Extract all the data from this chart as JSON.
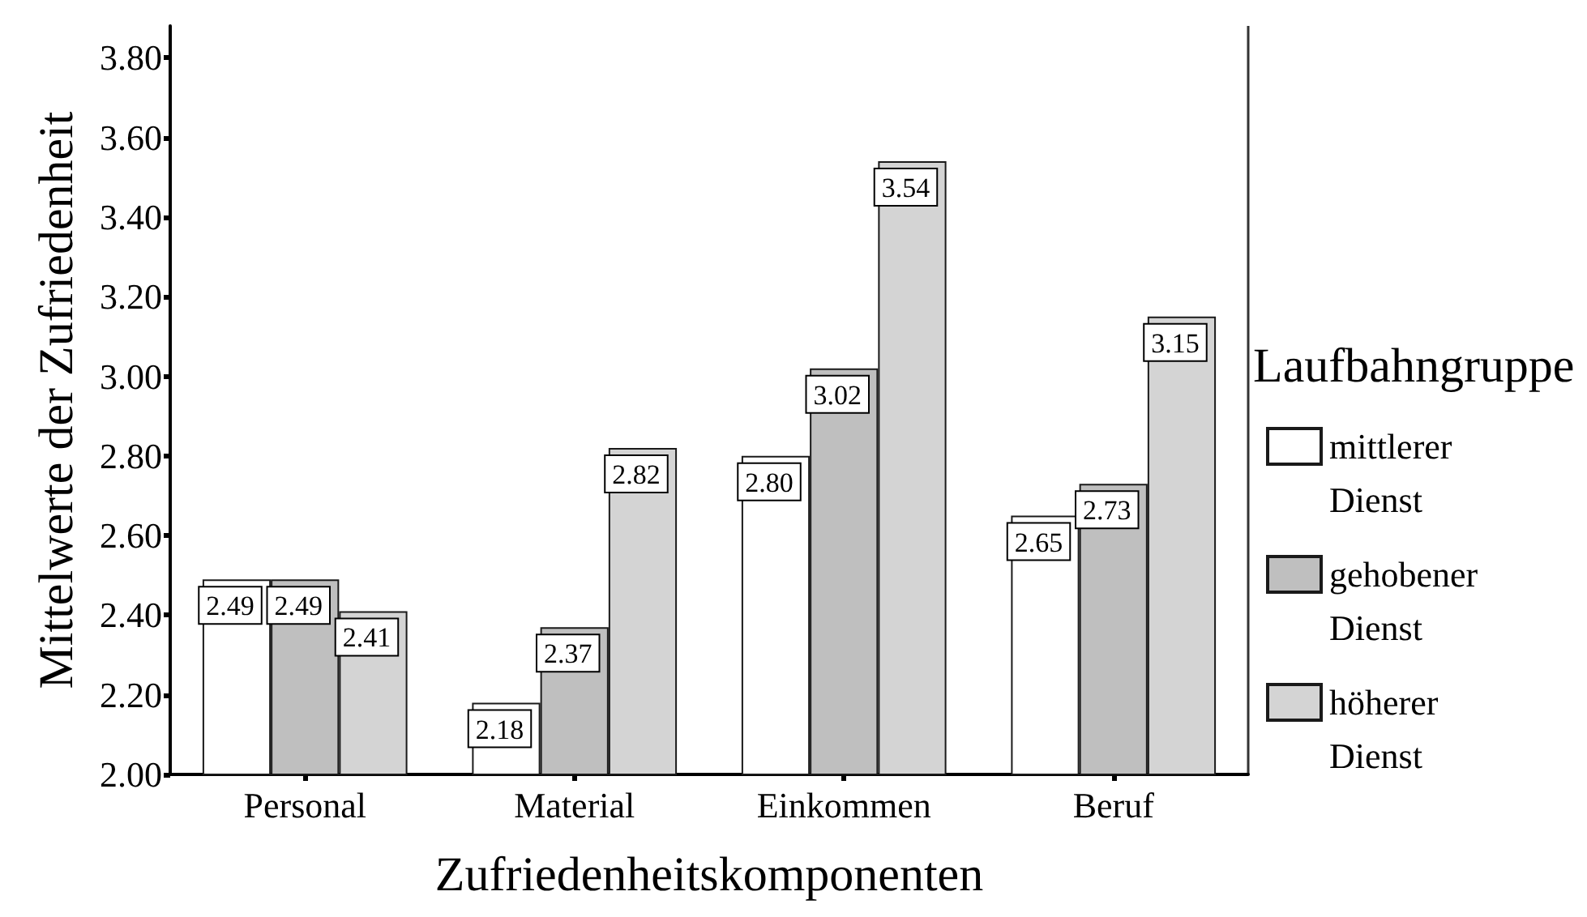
{
  "chart_data": {
    "type": "bar",
    "xlabel": "Zufriedenheitskomponenten",
    "ylabel": "Mittelwerte der Zufriedenheit",
    "legend_title": "Laufbahngruppe",
    "categories": [
      "Personal",
      "Material",
      "Einkommen",
      "Beruf"
    ],
    "series": [
      {
        "name": "mittlerer Dienst",
        "color": "#ffffff",
        "values": [
          2.49,
          2.18,
          2.8,
          2.65
        ],
        "value_labels": [
          "2.49",
          "2.18",
          "2.80",
          "2.65"
        ]
      },
      {
        "name": "gehobener Dienst",
        "color": "#bfbfbf",
        "values": [
          2.49,
          2.37,
          3.02,
          2.73
        ],
        "value_labels": [
          "2.49",
          "2.37",
          "3.02",
          "2.73"
        ]
      },
      {
        "name": "höherer Dienst",
        "color": "#d4d4d4",
        "values": [
          2.41,
          2.82,
          3.54,
          3.15
        ],
        "value_labels": [
          "2.41",
          "2.82",
          "3.54",
          "3.15"
        ]
      }
    ],
    "ylim": [
      2.0,
      3.88
    ],
    "yticks": [
      {
        "value": 2.0,
        "label": "2.00"
      },
      {
        "value": 2.2,
        "label": "2.20"
      },
      {
        "value": 2.4,
        "label": "2.40"
      },
      {
        "value": 2.6,
        "label": "2.60"
      },
      {
        "value": 2.8,
        "label": "2.80"
      },
      {
        "value": 3.0,
        "label": "3.00"
      },
      {
        "value": 3.2,
        "label": "3.20"
      },
      {
        "value": 3.4,
        "label": "3.40"
      },
      {
        "value": 3.6,
        "label": "3.60"
      },
      {
        "value": 3.8,
        "label": "3.80"
      }
    ],
    "legend": "right"
  }
}
